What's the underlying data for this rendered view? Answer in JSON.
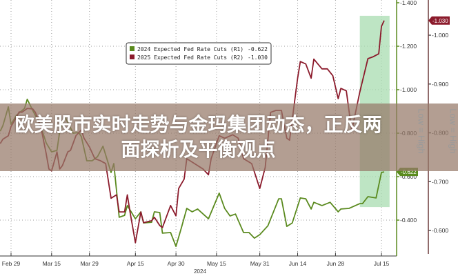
{
  "banner": {
    "line1": "欧美股市实时走势与金玛集团动态，正反两",
    "line2": "面探析及平衡观点"
  },
  "chart_data": {
    "type": "line",
    "xlabel": "2024",
    "x_ticks": [
      "Feb 29",
      "Mar 15",
      "Mar 29",
      "Apr 15",
      "Apr 30",
      "May 15",
      "May 31",
      "Jun 14",
      "Jun 28",
      "Jul 15"
    ],
    "x_tick_dates": [
      "2024-02-29",
      "2024-03-15",
      "2024-03-29",
      "2024-04-15",
      "2024-04-30",
      "2024-05-15",
      "2024-05-31",
      "2024-06-14",
      "2024-06-28",
      "2024-07-15"
    ],
    "grid": true,
    "legend_position": "top-center",
    "axes": {
      "R1": {
        "ticks": [
          "-1.400",
          "-1.200",
          "-1.000",
          "-0.800",
          "-0.600",
          "-0.400"
        ],
        "range": [
          -1.4,
          -0.25
        ],
        "inverted": true,
        "label": "Low = High",
        "color": "#5a8a1e"
      },
      "R2": {
        "ticks": [
          "-1.000",
          "-0.900",
          "-0.800",
          "-0.700",
          "-0.600"
        ],
        "range": [
          -1.07,
          -0.55
        ],
        "inverted": true,
        "label": "Low = High",
        "color": "#8b1a2b"
      }
    },
    "highlight": {
      "x_start": "2024-07-07",
      "x_end": "2024-07-18",
      "axis": "R1",
      "y_range": [
        -1.34,
        -0.46
      ],
      "color": "#a8dcb0"
    },
    "series": [
      {
        "name": "2024 Expected Fed Rate Cuts (R1)",
        "last": "-0.622",
        "axis": "R1",
        "color": "#5a8a1e",
        "points": [
          [
            "2024-02-25",
            -0.809
          ],
          [
            "2024-02-26",
            -0.835
          ],
          [
            "2024-02-28",
            -0.921
          ],
          [
            "2024-02-29",
            -0.841
          ],
          [
            "2024-03-02",
            -0.882
          ],
          [
            "2024-03-05",
            -0.914
          ],
          [
            "2024-03-06",
            -0.956
          ],
          [
            "2024-03-08",
            -0.905
          ],
          [
            "2024-03-11",
            -0.832
          ],
          [
            "2024-03-13",
            -0.755
          ],
          [
            "2024-03-15",
            -0.714
          ],
          [
            "2024-03-17",
            -0.721
          ],
          [
            "2024-03-18",
            -0.809
          ],
          [
            "2024-03-20",
            -0.873
          ],
          [
            "2024-03-23",
            -0.8
          ],
          [
            "2024-03-25",
            -0.803
          ],
          [
            "2024-03-26",
            -0.784
          ],
          [
            "2024-03-28",
            -0.673
          ],
          [
            "2024-03-30",
            -0.673
          ],
          [
            "2024-04-01",
            -0.692
          ],
          [
            "2024-04-03",
            -0.74
          ],
          [
            "2024-04-05",
            -0.66
          ],
          [
            "2024-04-06",
            -0.619
          ],
          [
            "2024-04-07",
            -0.66
          ],
          [
            "2024-04-09",
            -0.413
          ],
          [
            "2024-04-11",
            -0.422
          ],
          [
            "2024-04-12",
            -0.467
          ],
          [
            "2024-04-15",
            -0.406
          ],
          [
            "2024-04-17",
            -0.438
          ],
          [
            "2024-04-18",
            -0.387
          ],
          [
            "2024-04-21",
            -0.39
          ],
          [
            "2024-04-22",
            -0.438
          ],
          [
            "2024-04-24",
            -0.435
          ],
          [
            "2024-04-25",
            -0.34
          ],
          [
            "2024-04-28",
            -0.343
          ],
          [
            "2024-04-30",
            -0.279
          ],
          [
            "2024-05-02",
            -0.365
          ],
          [
            "2024-05-04",
            -0.454
          ],
          [
            "2024-05-06",
            -0.438
          ],
          [
            "2024-05-08",
            -0.451
          ],
          [
            "2024-05-12",
            -0.406
          ],
          [
            "2024-05-16",
            -0.524
          ],
          [
            "2024-05-18",
            -0.454
          ],
          [
            "2024-05-20",
            -0.419
          ],
          [
            "2024-05-22",
            -0.428
          ],
          [
            "2024-05-25",
            -0.343
          ],
          [
            "2024-05-27",
            -0.343
          ],
          [
            "2024-05-29",
            -0.317
          ],
          [
            "2024-05-31",
            -0.333
          ],
          [
            "2024-06-03",
            -0.374
          ],
          [
            "2024-06-07",
            -0.498
          ],
          [
            "2024-06-08",
            -0.498
          ],
          [
            "2024-06-10",
            -0.371
          ],
          [
            "2024-06-12",
            -0.387
          ],
          [
            "2024-06-15",
            -0.502
          ],
          [
            "2024-06-17",
            -0.498
          ],
          [
            "2024-06-19",
            -0.451
          ],
          [
            "2024-06-20",
            -0.482
          ],
          [
            "2024-06-23",
            -0.467
          ],
          [
            "2024-06-26",
            -0.482
          ],
          [
            "2024-06-29",
            -0.438
          ],
          [
            "2024-06-30",
            -0.451
          ],
          [
            "2024-07-03",
            -0.454
          ],
          [
            "2024-07-07",
            -0.476
          ],
          [
            "2024-07-08",
            -0.476
          ],
          [
            "2024-07-10",
            -0.508
          ],
          [
            "2024-07-13",
            -0.502
          ],
          [
            "2024-07-15",
            -0.619
          ],
          [
            "2024-07-16",
            -0.622
          ]
        ]
      },
      {
        "name": "2025 Expected Fed Rate Cuts (R2)",
        "last": "-1.030",
        "axis": "R2",
        "color": "#8b1a2b",
        "points": [
          [
            "2024-02-25",
            -0.778
          ],
          [
            "2024-02-26",
            -0.787
          ],
          [
            "2024-02-28",
            -0.794
          ],
          [
            "2024-02-29",
            -0.813
          ],
          [
            "2024-03-02",
            -0.832
          ],
          [
            "2024-03-03",
            -0.843
          ],
          [
            "2024-03-04",
            -0.842
          ],
          [
            "2024-03-06",
            -0.85
          ],
          [
            "2024-03-08",
            -0.849
          ],
          [
            "2024-03-09",
            -0.842
          ],
          [
            "2024-03-11",
            -0.813
          ],
          [
            "2024-03-13",
            -0.757
          ],
          [
            "2024-03-14",
            -0.726
          ],
          [
            "2024-03-15",
            -0.722
          ],
          [
            "2024-03-17",
            -0.761
          ],
          [
            "2024-03-18",
            -0.726
          ],
          [
            "2024-03-19",
            -0.733
          ],
          [
            "2024-03-21",
            -0.761
          ],
          [
            "2024-03-22",
            -0.764
          ],
          [
            "2024-03-24",
            -0.794
          ],
          [
            "2024-03-26",
            -0.806
          ],
          [
            "2024-03-27",
            -0.789
          ],
          [
            "2024-03-29",
            -0.771
          ],
          [
            "2024-03-31",
            -0.747
          ],
          [
            "2024-04-02",
            -0.743
          ],
          [
            "2024-04-04",
            -0.737
          ],
          [
            "2024-04-06",
            -0.666
          ],
          [
            "2024-04-08",
            -0.673
          ],
          [
            "2024-04-09",
            -0.638
          ],
          [
            "2024-04-11",
            -0.638
          ],
          [
            "2024-04-12",
            -0.673
          ],
          [
            "2024-04-13",
            -0.638
          ],
          [
            "2024-04-15",
            -0.575
          ],
          [
            "2024-04-17",
            -0.638
          ],
          [
            "2024-04-18",
            -0.616
          ],
          [
            "2024-04-21",
            -0.62
          ],
          [
            "2024-04-22",
            -0.627
          ],
          [
            "2024-04-24",
            -0.61
          ],
          [
            "2024-04-25",
            -0.606
          ],
          [
            "2024-04-28",
            -0.651
          ],
          [
            "2024-04-30",
            -0.63
          ],
          [
            "2024-05-01",
            -0.686
          ],
          [
            "2024-05-03",
            -0.705
          ],
          [
            "2024-05-04",
            -0.747
          ],
          [
            "2024-05-10",
            -0.726
          ],
          [
            "2024-05-12",
            -0.714
          ],
          [
            "2024-05-13",
            -0.747
          ],
          [
            "2024-05-16",
            -0.794
          ],
          [
            "2024-05-18",
            -0.789
          ],
          [
            "2024-05-21",
            -0.796
          ],
          [
            "2024-05-23",
            -0.789
          ],
          [
            "2024-05-25",
            -0.747
          ],
          [
            "2024-05-28",
            -0.737
          ],
          [
            "2024-05-31",
            -0.686
          ],
          [
            "2024-06-02",
            -0.729
          ],
          [
            "2024-06-04",
            -0.842
          ],
          [
            "2024-06-06",
            -0.846
          ],
          [
            "2024-06-08",
            -0.846
          ],
          [
            "2024-06-10",
            -0.789
          ],
          [
            "2024-06-11",
            -0.785
          ],
          [
            "2024-06-14",
            -0.912
          ],
          [
            "2024-06-15",
            -0.946
          ],
          [
            "2024-06-17",
            -0.941
          ],
          [
            "2024-06-19",
            -0.912
          ],
          [
            "2024-06-20",
            -0.951
          ],
          [
            "2024-06-23",
            -0.931
          ],
          [
            "2024-06-25",
            -0.931
          ],
          [
            "2024-06-27",
            -0.917
          ],
          [
            "2024-06-29",
            -0.87
          ],
          [
            "2024-06-30",
            -0.891
          ],
          [
            "2024-07-02",
            -0.886
          ],
          [
            "2024-07-04",
            -0.804
          ],
          [
            "2024-07-07",
            -0.884
          ],
          [
            "2024-07-10",
            -0.952
          ],
          [
            "2024-07-12",
            -0.956
          ],
          [
            "2024-07-14",
            -0.962
          ],
          [
            "2024-07-15",
            -1.018
          ],
          [
            "2024-07-16",
            -1.03
          ]
        ]
      }
    ]
  }
}
